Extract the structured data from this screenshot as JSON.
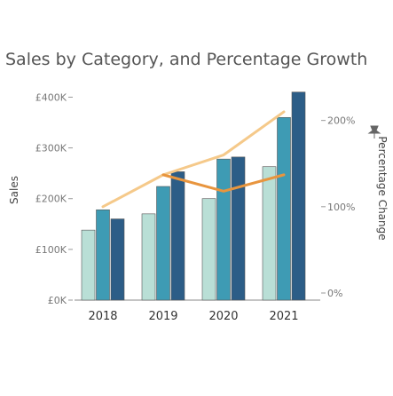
{
  "chart_data": {
    "type": "bar",
    "title": "Sales by Category, and Percentage Growth",
    "xlabel": "",
    "ylabel": "Sales",
    "y2label": "Percentage Change",
    "y2label_icon": "pin-icon",
    "categories": [
      "2018",
      "2019",
      "2020",
      "2021"
    ],
    "ylim": [
      0,
      420000
    ],
    "y_ticks": [
      {
        "value": 0,
        "label": "£0K"
      },
      {
        "value": 100000,
        "label": "£100K"
      },
      {
        "value": 200000,
        "label": "£200K"
      },
      {
        "value": 300000,
        "label": "£300K"
      },
      {
        "value": 400000,
        "label": "£400K"
      }
    ],
    "y2lim": [
      0,
      205
    ],
    "y2_ticks": [
      {
        "value": 0,
        "label": "0%"
      },
      {
        "value": 100,
        "label": "100%"
      },
      {
        "value": 200,
        "label": "200%"
      }
    ],
    "series": [
      {
        "kind": "bar",
        "color": "#b9dfd6",
        "values": [
          138000,
          170000,
          200000,
          263000
        ]
      },
      {
        "kind": "bar",
        "color": "#3e9bb4",
        "values": [
          178000,
          224000,
          278000,
          360000
        ]
      },
      {
        "kind": "bar",
        "color": "#2c5d87",
        "values": [
          160000,
          253000,
          282000,
          410000
        ]
      },
      {
        "kind": "line",
        "color": "#f5c98a",
        "values": [
          100,
          137,
          160,
          210
        ]
      },
      {
        "kind": "line",
        "color": "#e8953e",
        "values": null,
        "points": [
          {
            "x": "2019",
            "y": 137
          },
          {
            "x": "2020",
            "y": 118
          },
          {
            "x": "2021",
            "y": 137
          }
        ]
      }
    ],
    "grid": false,
    "legend": "none"
  }
}
